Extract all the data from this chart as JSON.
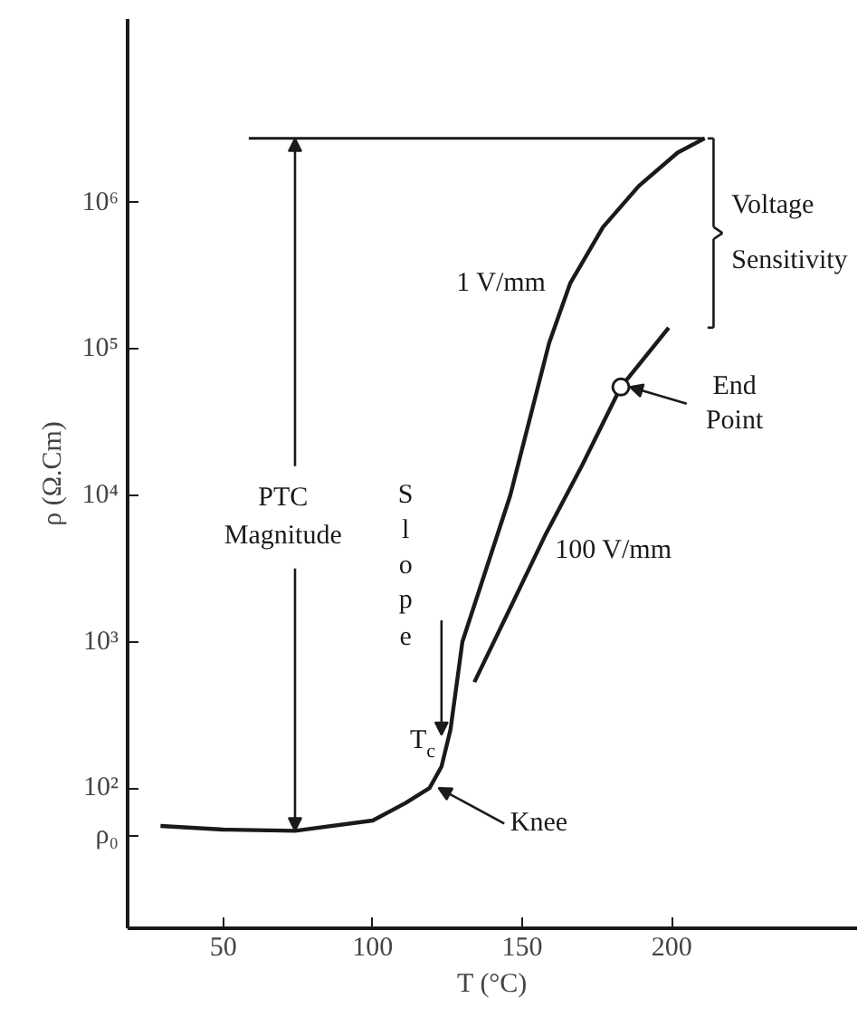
{
  "chart_data": {
    "type": "line",
    "xlabel": "T (°C)",
    "ylabel": "ρ (Ω.Cm)",
    "log": "y",
    "xlim": [
      18,
      262
    ],
    "ylim": [
      11,
      18000000
    ],
    "xticks": [
      50,
      100,
      150,
      200
    ],
    "yticks": [
      {
        "value": 47,
        "label": "ρ₀"
      },
      {
        "value": 100,
        "label": "10²"
      },
      {
        "value": 1000,
        "label": "10³"
      },
      {
        "value": 10000,
        "label": "10⁴"
      },
      {
        "value": 100000,
        "label": "10⁵"
      },
      {
        "value": 1000000,
        "label": "10⁶"
      }
    ],
    "grid": false,
    "marker": "none",
    "line_style": "solid",
    "series": [
      {
        "name": "1 V/mm",
        "color": "#1a1a1a",
        "x": [
          29,
          50,
          74,
          100,
          111,
          119,
          123,
          126,
          130,
          146,
          159,
          166,
          177,
          189,
          202,
          211
        ],
        "values": [
          55,
          52,
          51,
          60,
          79,
          100,
          140,
          250,
          1000,
          10000,
          110000,
          280000,
          680000,
          1300000,
          2200000,
          2750000
        ]
      },
      {
        "name": "100 V/mm",
        "color": "#1a1a1a",
        "x": [
          134,
          146,
          158,
          170,
          183,
          199
        ],
        "values": [
          530,
          1700,
          5500,
          16000,
          55000,
          140000
        ]
      }
    ],
    "ref_lines": [
      {
        "axis": "y",
        "value": 2750000,
        "color": "#1a1a1a",
        "line_style": "solid"
      }
    ],
    "annotations": [
      {
        "text": "PTC Magnitude",
        "x": 74,
        "y": 2750000
      },
      "Voltage Sensitivity",
      {
        "text": "Slope",
        "x": 130,
        "y": 1000
      },
      "T$_{c}$",
      {
        "text": "Knee",
        "x": 120,
        "y": 100
      },
      {
        "text": "End Point",
        "x": 183,
        "y": 55000
      }
    ]
  }
}
